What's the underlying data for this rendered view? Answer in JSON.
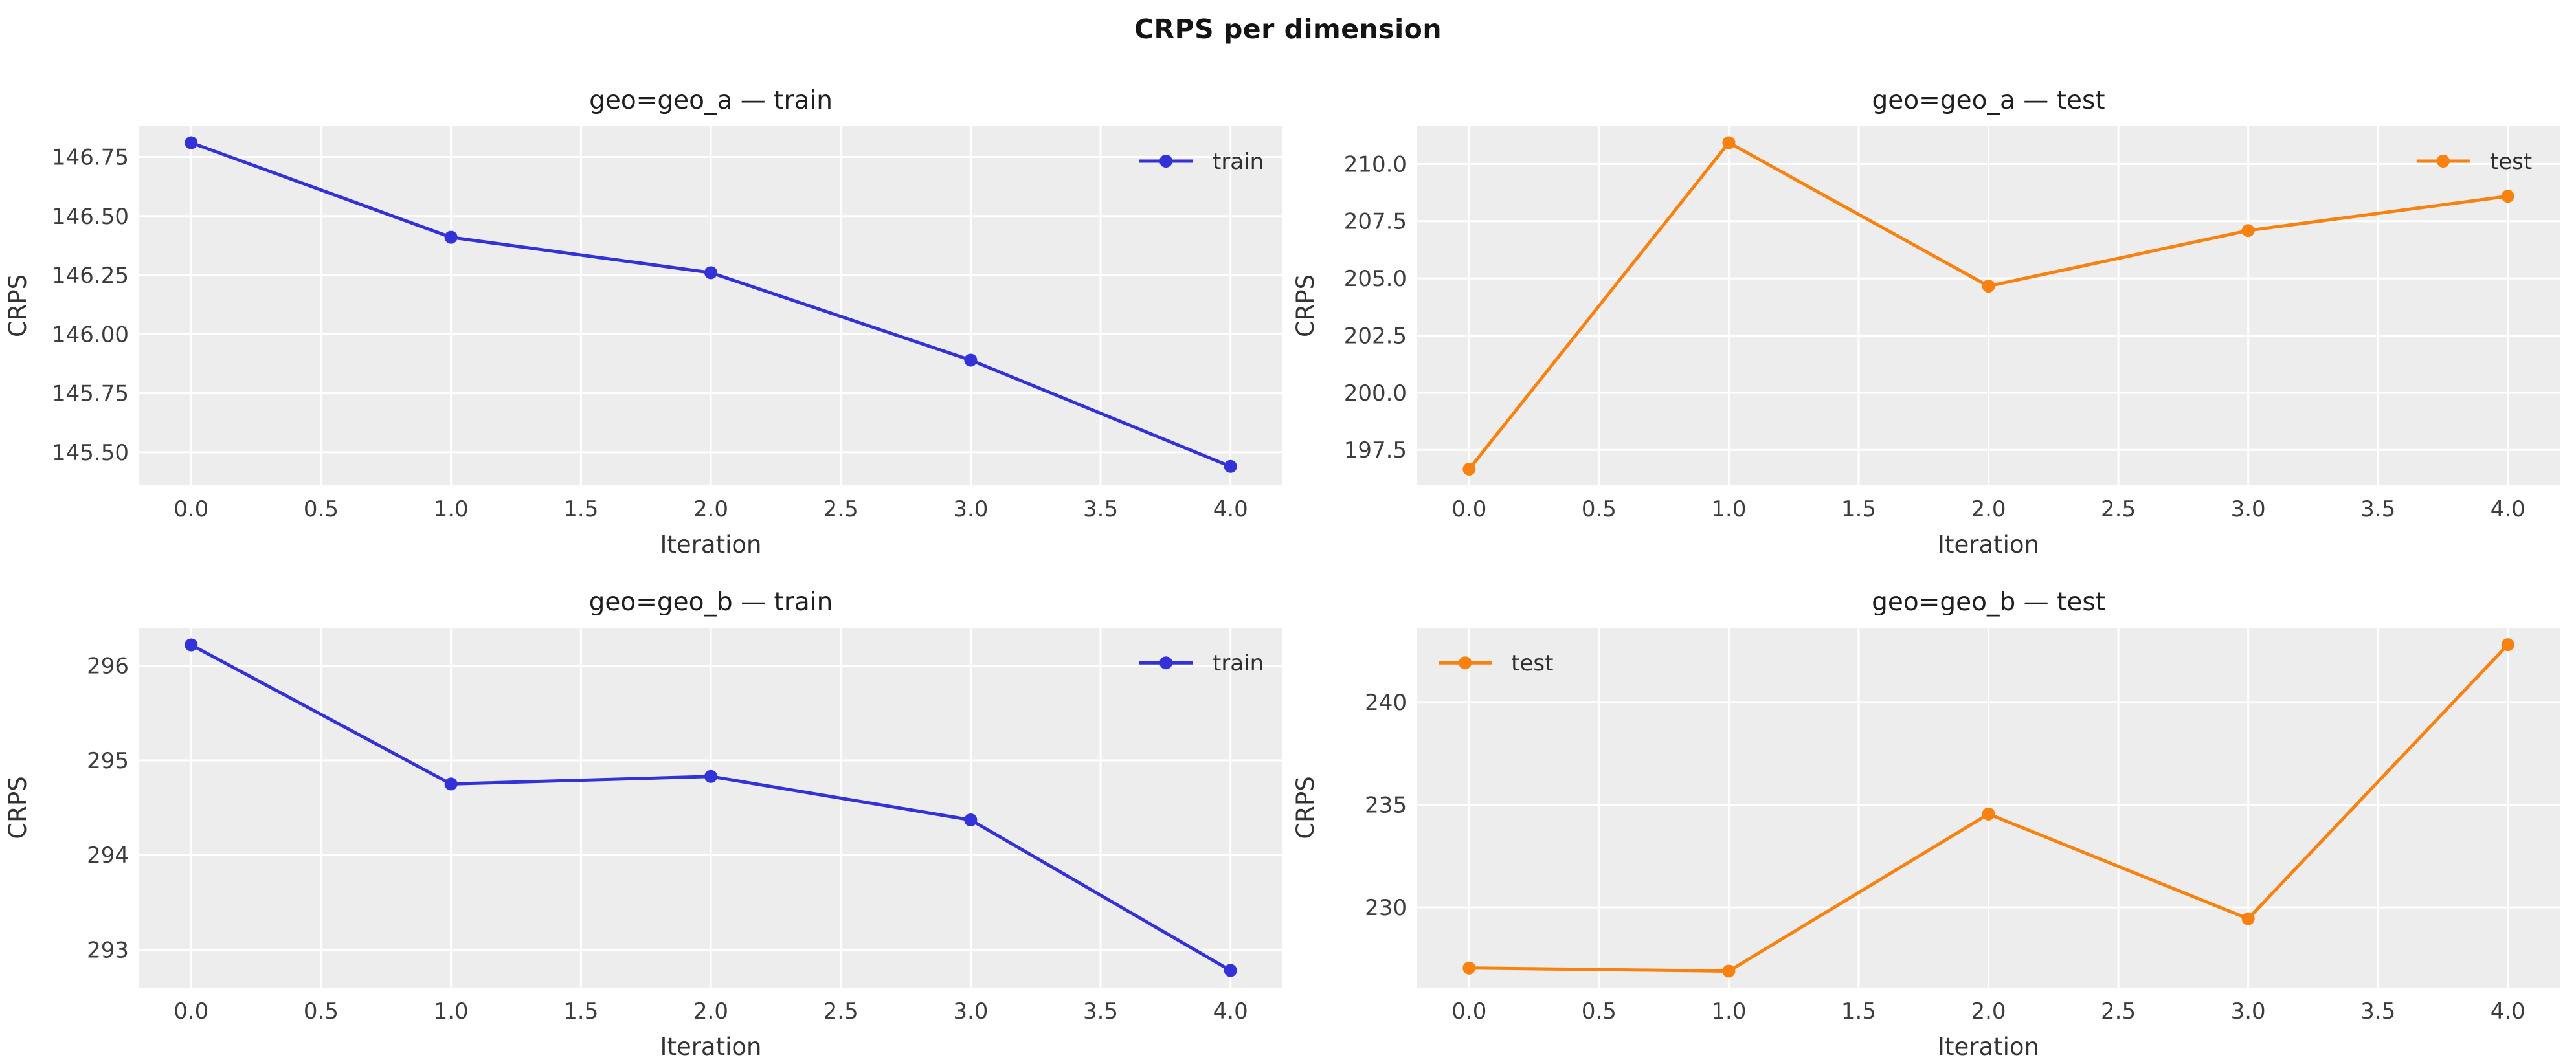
{
  "figure": {
    "title": "CRPS per dimension"
  },
  "colors": {
    "train": "#3232d8",
    "test": "#f8810f",
    "plot_bg": "#ededed",
    "grid": "#ffffff",
    "tick_text": "#3d3d3d",
    "label_text": "#333333",
    "title_text": "#1f1f1f",
    "legend_text": "#2e2e2e",
    "figure_bg": "#ffffff"
  },
  "chart_data": [
    {
      "type": "line",
      "title": "geo=geo_a — train",
      "xlabel": "Iteration",
      "ylabel": "CRPS",
      "x": [
        0,
        1,
        2,
        3,
        4
      ],
      "series": [
        {
          "name": "train",
          "color": "#3232d8",
          "values": [
            146.81,
            146.41,
            146.26,
            145.89,
            145.44
          ]
        }
      ],
      "xlim": [
        -0.2,
        4.2
      ],
      "ylim": [
        145.36,
        146.88
      ],
      "xticks": [
        0,
        0.5,
        1,
        1.5,
        2,
        2.5,
        3,
        3.5,
        4
      ],
      "xtick_labels": [
        "0.0",
        "0.5",
        "1.0",
        "1.5",
        "2.0",
        "2.5",
        "3.0",
        "3.5",
        "4.0"
      ],
      "yticks": [
        145.5,
        145.75,
        146.0,
        146.25,
        146.5,
        146.75
      ],
      "ytick_labels": [
        "145.50",
        "145.75",
        "146.00",
        "146.25",
        "146.50",
        "146.75"
      ],
      "grid": true,
      "legend": {
        "label": "train",
        "loc": "upper-right"
      }
    },
    {
      "type": "line",
      "title": "geo=geo_a — test",
      "xlabel": "Iteration",
      "ylabel": "CRPS",
      "x": [
        0,
        1,
        2,
        3,
        4
      ],
      "series": [
        {
          "name": "test",
          "color": "#f8810f",
          "values": [
            196.66,
            210.93,
            204.66,
            207.09,
            208.59
          ]
        }
      ],
      "xlim": [
        -0.2,
        4.2
      ],
      "ylim": [
        195.95,
        211.65
      ],
      "xticks": [
        0,
        0.5,
        1,
        1.5,
        2,
        2.5,
        3,
        3.5,
        4
      ],
      "xtick_labels": [
        "0.0",
        "0.5",
        "1.0",
        "1.5",
        "2.0",
        "2.5",
        "3.0",
        "3.5",
        "4.0"
      ],
      "yticks": [
        197.5,
        200.0,
        202.5,
        205.0,
        207.5,
        210.0
      ],
      "ytick_labels": [
        "197.5",
        "200.0",
        "202.5",
        "205.0",
        "207.5",
        "210.0"
      ],
      "grid": true,
      "legend": {
        "label": "test",
        "loc": "upper-right"
      }
    },
    {
      "type": "line",
      "title": "geo=geo_b — train",
      "xlabel": "Iteration",
      "ylabel": "CRPS",
      "x": [
        0,
        1,
        2,
        3,
        4
      ],
      "series": [
        {
          "name": "train",
          "color": "#3232d8",
          "values": [
            296.22,
            294.75,
            294.83,
            294.37,
            292.78
          ]
        }
      ],
      "xlim": [
        -0.2,
        4.2
      ],
      "ylim": [
        292.6,
        296.4
      ],
      "xticks": [
        0,
        0.5,
        1,
        1.5,
        2,
        2.5,
        3,
        3.5,
        4
      ],
      "xtick_labels": [
        "0.0",
        "0.5",
        "1.0",
        "1.5",
        "2.0",
        "2.5",
        "3.0",
        "3.5",
        "4.0"
      ],
      "yticks": [
        293,
        294,
        295,
        296
      ],
      "ytick_labels": [
        "293",
        "294",
        "295",
        "296"
      ],
      "grid": true,
      "legend": {
        "label": "train",
        "loc": "upper-right"
      }
    },
    {
      "type": "line",
      "title": "geo=geo_b — test",
      "xlabel": "Iteration",
      "ylabel": "CRPS",
      "x": [
        0,
        1,
        2,
        3,
        4
      ],
      "series": [
        {
          "name": "test",
          "color": "#f8810f",
          "values": [
            227.05,
            226.9,
            234.55,
            229.45,
            242.8
          ]
        }
      ],
      "xlim": [
        -0.2,
        4.2
      ],
      "ylim": [
        226.1,
        243.62
      ],
      "xticks": [
        0,
        0.5,
        1,
        1.5,
        2,
        2.5,
        3,
        3.5,
        4
      ],
      "xtick_labels": [
        "0.0",
        "0.5",
        "1.0",
        "1.5",
        "2.0",
        "2.5",
        "3.0",
        "3.5",
        "4.0"
      ],
      "yticks": [
        230,
        235,
        240
      ],
      "ytick_labels": [
        "230",
        "235",
        "240"
      ],
      "grid": true,
      "legend": {
        "label": "test",
        "loc": "upper-left"
      }
    }
  ]
}
